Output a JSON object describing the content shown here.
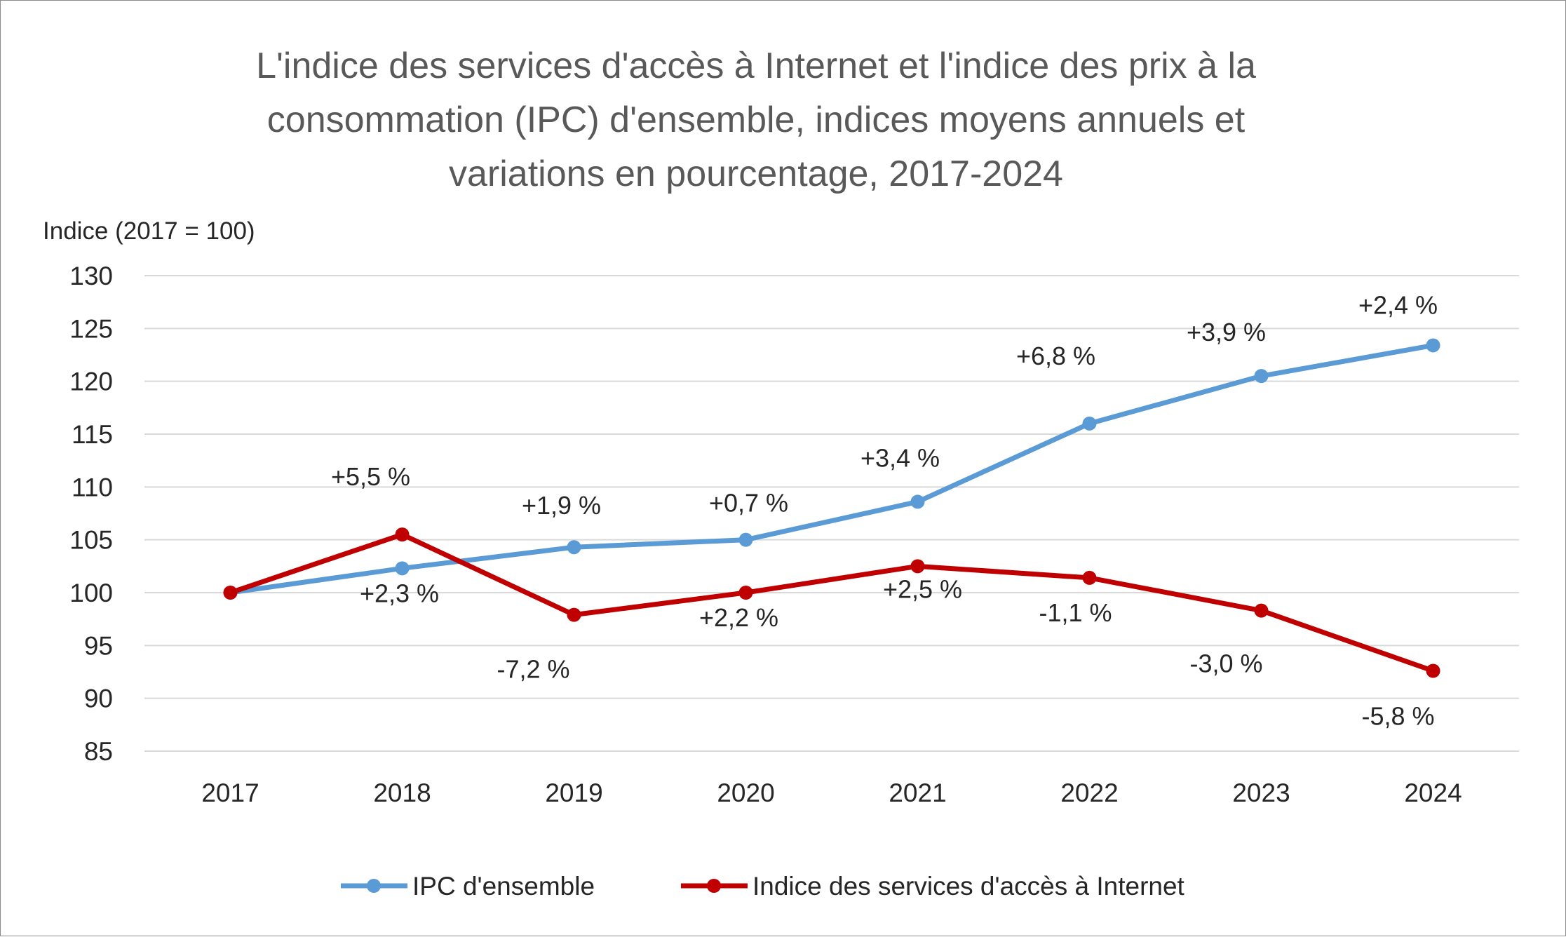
{
  "chart_data": {
    "type": "line",
    "title_lines": [
      "L'indice des services d'accès à Internet et l'indice des prix à la",
      "consommation (IPC) d'ensemble, indices moyens annuels et",
      "variations en pourcentage, 2017-2024"
    ],
    "ylabel": "Indice (2017 = 100)",
    "xlabel": "",
    "ylim": [
      85,
      130
    ],
    "yticks": [
      130,
      125,
      120,
      115,
      110,
      105,
      100,
      95,
      90,
      85
    ],
    "ytick_labels": [
      "130",
      "125",
      "120",
      "115",
      "110",
      "105",
      "100",
      "95",
      "90",
      "85"
    ],
    "categories": [
      "2017",
      "2018",
      "2019",
      "2020",
      "2021",
      "2022",
      "2023",
      "2024"
    ],
    "grid": true,
    "legend_position": "bottom",
    "series": [
      {
        "name": "IPC d'ensemble",
        "color": "#5b9bd5",
        "values": [
          100,
          102.3,
          104.3,
          105.0,
          108.6,
          116.0,
          120.5,
          123.4
        ],
        "labels": [
          "",
          "+2,3 %",
          "+1,9 %",
          "+0,7 %",
          "+3,4 %",
          "+6,8 %",
          "+3,9 %",
          "+2,4 %"
        ]
      },
      {
        "name": "Indice des services d'accès à Internet",
        "color": "#c00000",
        "values": [
          100,
          105.5,
          97.9,
          100.0,
          102.5,
          101.4,
          98.3,
          92.6
        ],
        "labels": [
          "",
          "+5,5 %",
          "-7,2 %",
          "+2,2 %",
          "+2,5 %",
          "-1,1 %",
          "-3,0 %",
          "-5,8 %"
        ]
      }
    ]
  }
}
